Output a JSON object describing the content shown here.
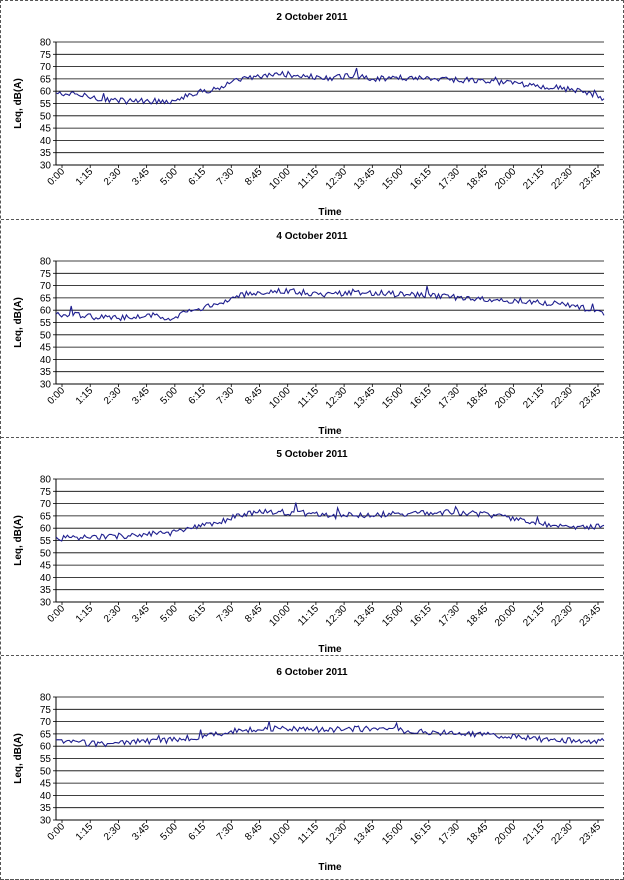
{
  "chart_data": [
    {
      "type": "line",
      "title": "2 October 2011",
      "xlabel": "Time",
      "ylabel": "Leq, dB(A)",
      "ylim": [
        30,
        80
      ],
      "yticks": [
        "30",
        "35",
        "40",
        "45",
        "50",
        "55",
        "60",
        "65",
        "70",
        "75",
        "80"
      ],
      "xticks": [
        "0:00",
        "1:15",
        "2:30",
        "3:45",
        "5:00",
        "6:15",
        "7:30",
        "8:45",
        "10:00",
        "11:15",
        "12:30",
        "13:45",
        "15:00",
        "16:15",
        "17:30",
        "18:45",
        "20:00",
        "21:15",
        "22:30",
        "23:45"
      ],
      "series": [
        {
          "name": "Leq",
          "color": "#1f1f8f",
          "x_hours": [
            0,
            1,
            2,
            3,
            4,
            5,
            6,
            7,
            8,
            9,
            10,
            11,
            12,
            13,
            14,
            15,
            16,
            17,
            18,
            19,
            20,
            21,
            22,
            23,
            24
          ],
          "values": [
            59,
            58.5,
            57,
            56,
            56,
            56,
            59,
            61,
            64.5,
            66,
            67,
            66,
            65,
            66.5,
            65,
            65.5,
            65.5,
            65,
            64.5,
            64,
            63,
            62,
            61.5,
            60,
            57
          ]
        }
      ]
    },
    {
      "type": "line",
      "title": "4 October 2011",
      "xlabel": "Time",
      "ylabel": "Leq, dB(A)",
      "ylim": [
        30,
        80
      ],
      "yticks": [
        "30",
        "35",
        "40",
        "45",
        "50",
        "55",
        "60",
        "65",
        "70",
        "75",
        "80"
      ],
      "xticks": [
        "0:00",
        "1:15",
        "2:30",
        "3:45",
        "5:00",
        "6:15",
        "7:30",
        "8:45",
        "10:00",
        "11:15",
        "12:30",
        "13:45",
        "15:00",
        "16:15",
        "17:30",
        "18:45",
        "20:00",
        "21:15",
        "22:30",
        "23:45"
      ],
      "series": [
        {
          "name": "Leq",
          "color": "#1f1f8f",
          "x_hours": [
            0,
            1,
            2,
            3,
            4,
            5,
            6,
            7,
            8,
            9,
            10,
            11,
            12,
            13,
            14,
            15,
            16,
            17,
            18,
            19,
            20,
            21,
            22,
            23,
            24
          ],
          "values": [
            58,
            58,
            57,
            57,
            58,
            57,
            60,
            62,
            66,
            67.5,
            68,
            67,
            66,
            67.5,
            67,
            66.5,
            66,
            65.5,
            65,
            64.5,
            64,
            63.5,
            62.5,
            61,
            59
          ]
        }
      ]
    },
    {
      "type": "line",
      "title": "5 October 2011",
      "xlabel": "Time",
      "ylabel": "Leq, dB(A)",
      "ylim": [
        30,
        80
      ],
      "yticks": [
        "30",
        "35",
        "40",
        "45",
        "50",
        "55",
        "60",
        "65",
        "70",
        "75",
        "80"
      ],
      "xticks": [
        "0:00",
        "1:15",
        "2:30",
        "3:45",
        "5:00",
        "6:15",
        "7:30",
        "8:45",
        "10:00",
        "11:15",
        "12:30",
        "13:45",
        "15:00",
        "16:15",
        "17:30",
        "18:45",
        "20:00",
        "21:15",
        "22:30",
        "23:45"
      ],
      "series": [
        {
          "name": "Leq",
          "color": "#1f1f8f",
          "x_hours": [
            0,
            1,
            2,
            3,
            4,
            5,
            6,
            7,
            8,
            9,
            10,
            11,
            12,
            13,
            14,
            15,
            16,
            17,
            18,
            19,
            20,
            21,
            22,
            23,
            24
          ],
          "values": [
            56,
            56,
            56.5,
            57,
            57.5,
            58,
            60,
            62,
            65,
            67,
            66.5,
            66,
            65,
            65.5,
            65.5,
            66,
            66,
            66.5,
            66,
            65.5,
            64,
            62,
            61,
            60.5,
            61
          ]
        }
      ]
    },
    {
      "type": "line",
      "title": "6 October 2011",
      "xlabel": "Time",
      "ylabel": "Leq, dB(A)",
      "ylim": [
        30,
        80
      ],
      "yticks": [
        "30",
        "35",
        "40",
        "45",
        "50",
        "55",
        "60",
        "65",
        "70",
        "75",
        "80"
      ],
      "xticks": [
        "0:00",
        "1:15",
        "2:30",
        "3:45",
        "5:00",
        "6:15",
        "7:30",
        "8:45",
        "10:00",
        "11:15",
        "12:30",
        "13:45",
        "15:00",
        "16:15",
        "17:30",
        "18:45",
        "20:00",
        "21:15",
        "22:30",
        "23:45"
      ],
      "series": [
        {
          "name": "Leq",
          "color": "#1f1f8f",
          "x_hours": [
            0,
            1,
            2,
            3,
            4,
            5,
            6,
            7,
            8,
            9,
            10,
            11,
            12,
            13,
            14,
            15,
            16,
            17,
            18,
            19,
            20,
            21,
            22,
            23,
            24
          ],
          "values": [
            62,
            61.5,
            61,
            61.5,
            62,
            62.5,
            63.5,
            65,
            66.5,
            67,
            67.5,
            67,
            66.5,
            67,
            67,
            66.5,
            66,
            65.5,
            65,
            64.5,
            64,
            63,
            62.5,
            62,
            62
          ]
        }
      ]
    }
  ]
}
